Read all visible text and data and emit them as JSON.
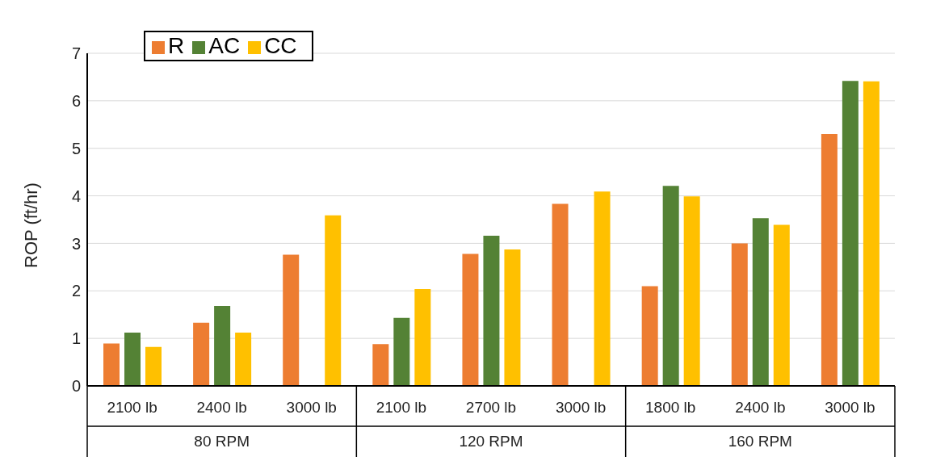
{
  "chart_data": {
    "type": "bar",
    "ylabel": "ROP (ft/hr)",
    "categories": [
      "2100 lb",
      "2400 lb",
      "3000 lb",
      "2100 lb",
      "2700 lb",
      "3000 lb",
      "1800 lb",
      "2400 lb",
      "3000 lb"
    ],
    "annotations": [
      "80 RPM",
      "120 RPM",
      "160 RPM"
    ],
    "series": [
      {
        "name": "R",
        "color": "#ed7d31",
        "values": [
          0.89,
          1.33,
          2.76,
          0.88,
          2.78,
          3.83,
          2.1,
          3.0,
          5.3
        ]
      },
      {
        "name": "AC",
        "color": "#548235",
        "values": [
          1.12,
          1.68,
          null,
          1.43,
          3.16,
          null,
          4.21,
          3.53,
          6.42
        ]
      },
      {
        "name": "CC",
        "color": "#ffc000",
        "values": [
          0.82,
          1.12,
          3.59,
          2.04,
          2.87,
          4.09,
          3.99,
          3.39,
          6.41
        ]
      }
    ],
    "ylim": [
      0,
      7
    ],
    "yticks": [
      0,
      1,
      2,
      3,
      4,
      5,
      6,
      7
    ],
    "grid": "y",
    "legend": "top left"
  }
}
